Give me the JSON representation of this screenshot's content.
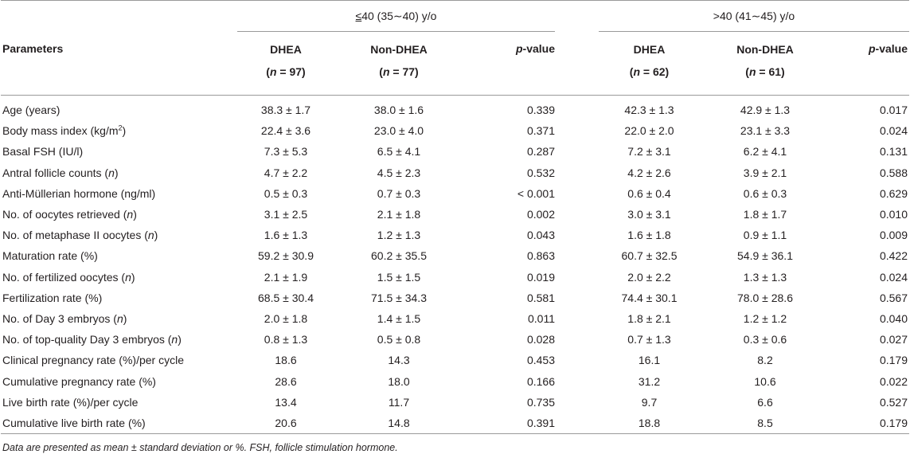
{
  "groups": [
    {
      "symbol": "≤",
      "label": "40 (35∼40) y/o"
    },
    {
      "symbol": ">",
      "label": "40 (41∼45) y/o"
    }
  ],
  "header": {
    "parameters": "Parameters",
    "cols": [
      {
        "name": "DHEA",
        "n_label": "n",
        "n_value": " = 97)"
      },
      {
        "name": "Non-DHEA",
        "n_label": "n",
        "n_value": " = 77)"
      },
      {
        "name_italic": "p",
        "name_rest": "-value"
      },
      {
        "name": "DHEA",
        "n_label": "n",
        "n_value": " = 62)"
      },
      {
        "name": "Non-DHEA",
        "n_label": "n",
        "n_value": " = 61)"
      },
      {
        "name_italic": "p",
        "name_rest": "-value"
      }
    ],
    "open_paren": "("
  },
  "rows": [
    {
      "label": "Age (years)",
      "values": [
        "38.3 ± 1.7",
        "38.0 ± 1.6",
        "0.339",
        "42.3 ± 1.3",
        "42.9 ± 1.3",
        "0.017"
      ]
    },
    {
      "label": "Body mass index (kg/m",
      "sup": "2",
      "label_end": ")",
      "values": [
        "22.4 ± 3.6",
        "23.0 ± 4.0",
        "0.371",
        "22.0 ± 2.0",
        "23.1 ± 3.3",
        "0.024"
      ]
    },
    {
      "label": "Basal FSH (IU/l)",
      "values": [
        "7.3 ± 5.3",
        "6.5 ± 4.1",
        "0.287",
        "7.2 ± 3.1",
        "6.2 ± 4.1",
        "0.131"
      ]
    },
    {
      "label": "Antral follicle counts (",
      "italic": "n",
      "label_end": ")",
      "values": [
        "4.7 ± 2.2",
        "4.5 ± 2.3",
        "0.532",
        "4.2 ± 2.6",
        "3.9 ± 2.1",
        "0.588"
      ]
    },
    {
      "label": "Anti-Müllerian hormone (ng/ml)",
      "values": [
        "0.5 ± 0.3",
        "0.7 ± 0.3",
        "< 0.001",
        "0.6 ± 0.4",
        "0.6 ± 0.3",
        "0.629"
      ]
    },
    {
      "label": "No. of oocytes retrieved (",
      "italic": "n",
      "label_end": ")",
      "values": [
        "3.1 ± 2.5",
        "2.1 ± 1.8",
        "0.002",
        "3.0 ± 3.1",
        "1.8 ± 1.7",
        "0.010"
      ]
    },
    {
      "label": "No. of metaphase II oocytes (",
      "italic": "n",
      "label_end": ")",
      "values": [
        "1.6 ± 1.3",
        "1.2 ± 1.3",
        "0.043",
        "1.6 ± 1.8",
        "0.9 ± 1.1",
        "0.009"
      ]
    },
    {
      "label": "Maturation rate (%)",
      "values": [
        "59.2 ± 30.9",
        "60.2 ± 35.5",
        "0.863",
        "60.7 ± 32.5",
        "54.9 ± 36.1",
        "0.422"
      ]
    },
    {
      "label": "No. of fertilized oocytes (",
      "italic": "n",
      "label_end": ")",
      "values": [
        "2.1 ± 1.9",
        "1.5 ± 1.5",
        "0.019",
        "2.0 ± 2.2",
        "1.3 ± 1.3",
        "0.024"
      ]
    },
    {
      "label": "Fertilization rate (%)",
      "values": [
        "68.5 ± 30.4",
        "71.5 ± 34.3",
        "0.581",
        "74.4 ± 30.1",
        "78.0 ± 28.6",
        "0.567"
      ]
    },
    {
      "label": "No. of Day 3 embryos (",
      "italic": "n",
      "label_end": ")",
      "values": [
        "2.0 ± 1.8",
        "1.4 ± 1.5",
        "0.011",
        "1.8 ± 2.1",
        "1.2 ± 1.2",
        "0.040"
      ]
    },
    {
      "label": "No. of top-quality Day 3 embryos (",
      "italic": "n",
      "label_end": ")",
      "values": [
        "0.8 ± 1.3",
        "0.5 ± 0.8",
        "0.028",
        "0.7 ± 1.3",
        "0.3 ± 0.6",
        "0.027"
      ]
    },
    {
      "label": "Clinical pregnancy rate (%)/per cycle",
      "values": [
        "18.6",
        "14.3",
        "0.453",
        "16.1",
        "8.2",
        "0.179"
      ]
    },
    {
      "label": "Cumulative pregnancy rate (%)",
      "values": [
        "28.6",
        "18.0",
        "0.166",
        "31.2",
        "10.6",
        "0.022"
      ]
    },
    {
      "label": "Live birth rate (%)/per cycle",
      "values": [
        "13.4",
        "11.7",
        "0.735",
        "9.7",
        "6.6",
        "0.527"
      ]
    },
    {
      "label": "Cumulative live birth rate (%)",
      "values": [
        "20.6",
        "14.8",
        "0.391",
        "18.8",
        "8.5",
        "0.179"
      ]
    }
  ],
  "footnote": "Data are presented as mean ± standard deviation or %. FSH, follicle stimulation hormone."
}
